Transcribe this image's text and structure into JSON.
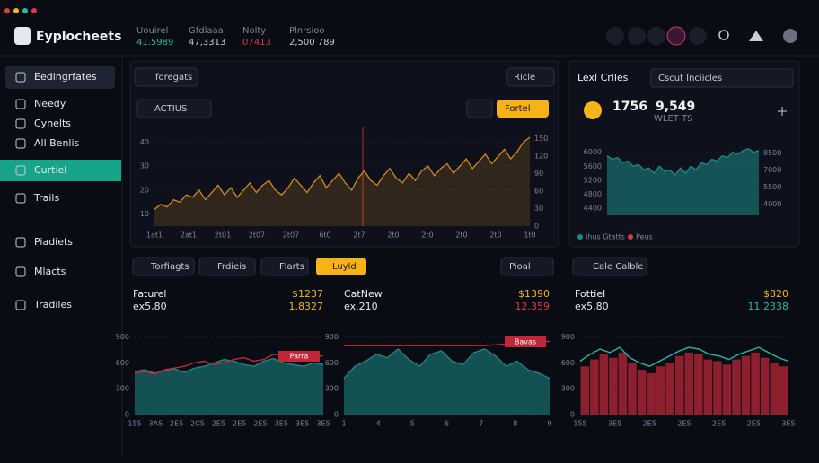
{
  "header": {
    "logo": "Eyplocheets",
    "stats": [
      {
        "label": "Uouirel",
        "value": "41.5989",
        "color": "#21b8a6"
      },
      {
        "label": "Gfdlaaa",
        "value": "47,3313",
        "color": "#c9ccd6"
      },
      {
        "label": "Nolty",
        "value": "07413",
        "color": "#e0364a"
      },
      {
        "label": "Plnrsioo",
        "value": "2,500 789",
        "color": "#c9ccd6"
      }
    ]
  },
  "sidebar": {
    "items": [
      "Eedingrfates",
      "Needy",
      "Cynelts",
      "All Benlis",
      "Curtiel",
      "Trails",
      "Piadiets",
      "Mlacts",
      "Tradiles"
    ],
    "active_index": 4,
    "open_index": 0
  },
  "main": {
    "tab": "Iforegats",
    "dropdown": "Ricle",
    "asset": "ACTIUS",
    "action": "Fortel",
    "chart": {
      "type": "area",
      "ylim": [
        5,
        45
      ],
      "yticks": [
        10,
        20,
        30,
        40
      ],
      "y2lim": [
        0,
        165
      ],
      "y2ticks": [
        0,
        30,
        60,
        90,
        120,
        150
      ],
      "xtick_labels": [
        "1at1",
        "2at1",
        "2t01",
        "2t07",
        "2t07",
        "6t0",
        "2t7",
        "2t0",
        "2t0",
        "2t0",
        "2t0",
        "1t0"
      ],
      "series": [
        {
          "style": "area",
          "color": "#d08a1e",
          "values": [
            12,
            14,
            13,
            16,
            15,
            18,
            17,
            20,
            16,
            19,
            22,
            18,
            21,
            17,
            20,
            23,
            19,
            22,
            24,
            20,
            18,
            21,
            25,
            22,
            19,
            23,
            26,
            21,
            24,
            27,
            23,
            20,
            25,
            28,
            24,
            22,
            26,
            29,
            25,
            23,
            27,
            24,
            28,
            30,
            26,
            29,
            31,
            27,
            30,
            33,
            29,
            32,
            35,
            31,
            34,
            37,
            33,
            36,
            40,
            42
          ]
        }
      ]
    }
  },
  "side": {
    "title": "Lexl Crlles",
    "dropdown": "Cscut Inciicles",
    "coin": "1756",
    "price": "9,549",
    "sub": "WLET TS",
    "chart": {
      "type": "area",
      "ylim": [
        4200,
        6300
      ],
      "yticks": [
        4400,
        4800,
        5200,
        5600,
        6000
      ],
      "y2lim": [
        3000,
        9500
      ],
      "y2ticks": [
        4000,
        5500,
        7000,
        8500
      ],
      "series": [
        {
          "style": "area",
          "color": "#1d8a86",
          "name": "Ihus Gtatts",
          "values": [
            5900,
            5800,
            5850,
            5700,
            5750,
            5600,
            5650,
            5500,
            5550,
            5400,
            5600,
            5450,
            5500,
            5350,
            5550,
            5400,
            5600,
            5500,
            5700,
            5650,
            5800,
            5750,
            5900,
            5850,
            6000,
            5950,
            6050,
            6100,
            6000,
            6050
          ]
        },
        {
          "style": "legend",
          "color": "#e0364a",
          "name": "Peus",
          "values": []
        }
      ]
    }
  },
  "tabs": [
    "Torfiagts",
    "Frdieis",
    "Flarts"
  ],
  "tab_action": "Luyld",
  "tab_dropdown": "Pioal",
  "tab_right": "Cale Calble",
  "panels": [
    {
      "title": "Faturel",
      "subtitle": "ex5,80",
      "price": "$1237",
      "change": "1.8327",
      "change_color": "#f5b316",
      "tag": "Parra",
      "chart": {
        "type": "area",
        "ylim": [
          0,
          1000
        ],
        "yticks": [
          0,
          300,
          600,
          900
        ],
        "xtick_labels": [
          "155",
          "3AS",
          "2E5",
          "2C5",
          "2E5",
          "2E5",
          "2E5",
          "3E5",
          "3E5",
          "3E5"
        ],
        "series": [
          {
            "style": "area",
            "color": "#1d8a86",
            "values": [
              500,
              520,
              480,
              510,
              530,
              490,
              540,
              560,
              600,
              640,
              620,
              580,
              560,
              620,
              650,
              600,
              580,
              560,
              600,
              580
            ]
          },
          {
            "style": "line",
            "color": "#c0283a",
            "values": [
              480,
              500,
              470,
              520,
              540,
              560,
              600,
              620,
              580,
              600,
              640,
              660,
              620,
              640,
              700,
              690,
              680,
              680,
              680,
              680
            ]
          }
        ]
      }
    },
    {
      "title": "CatNew",
      "subtitle": "ex.210",
      "price": "$1390",
      "change": "12,359",
      "change_color": "#e0364a",
      "tag": "Bavas",
      "chart": {
        "type": "area",
        "ylim": [
          0,
          1000
        ],
        "yticks": [
          0,
          300,
          600,
          900
        ],
        "xtick_labels": [
          "1",
          "4",
          "5",
          "6",
          "7",
          "8",
          "9"
        ],
        "series": [
          {
            "style": "area",
            "color": "#1d8a86",
            "values": [
              420,
              560,
              620,
              700,
              660,
              760,
              640,
              560,
              700,
              740,
              620,
              580,
              720,
              760,
              680,
              560,
              620,
              520,
              480,
              420
            ]
          },
          {
            "style": "line",
            "color": "#c0283a",
            "values": [
              800,
              800,
              800,
              800,
              800,
              800,
              800,
              800,
              800,
              800,
              800,
              800,
              800,
              800,
              810,
              820,
              830,
              840,
              850,
              850
            ]
          }
        ]
      }
    },
    {
      "title": "Fottiel",
      "subtitle": "ex5,80",
      "price": "$820",
      "change": "11,2338",
      "change_color": "#21b8a6",
      "tag": null,
      "chart": {
        "type": "bar",
        "ylim": [
          0,
          1000
        ],
        "yticks": [
          0,
          300,
          600,
          900
        ],
        "xtick_labels": [
          "155",
          "3E5",
          "2E5",
          "2E5",
          "2E5",
          "2E5",
          "3E5"
        ],
        "series": [
          {
            "style": "bar",
            "color": "#8e1f2e",
            "values": [
              560,
              640,
              700,
              660,
              720,
              600,
              520,
              480,
              560,
              600,
              680,
              720,
              700,
              640,
              620,
              580,
              640,
              680,
              720,
              660,
              600,
              560
            ]
          },
          {
            "style": "line",
            "color": "#21b8a6",
            "values": [
              620,
              700,
              760,
              720,
              780,
              660,
              600,
              560,
              620,
              680,
              740,
              780,
              760,
              700,
              680,
              640,
              700,
              740,
              780,
              720,
              660,
              620
            ]
          }
        ]
      }
    }
  ]
}
